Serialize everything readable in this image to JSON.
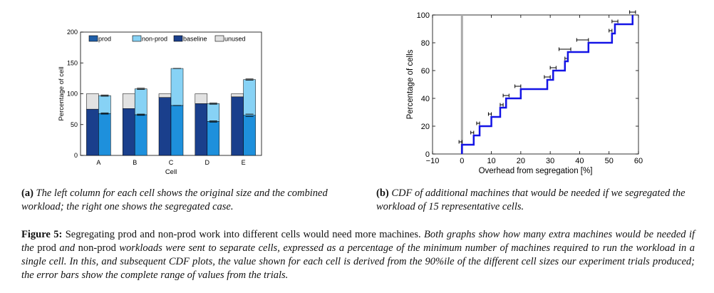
{
  "colors": {
    "prod": "#1f5fa8",
    "prod_right": "#1e90dc",
    "nonprod": "#87d2f5",
    "baseline": "#1a3f8c",
    "unused": "#e2e2e2",
    "cdf": "#1414e6",
    "zero_line": "#aaaaaa"
  },
  "chart_data": [
    {
      "type": "bar",
      "ylabel": "Percentage of cell",
      "xlabel": "Cell",
      "ylim": [
        0,
        200
      ],
      "yticks": [
        "0",
        "50",
        "100",
        "150",
        "200"
      ],
      "categories": [
        "A",
        "B",
        "C",
        "D",
        "E"
      ],
      "legend": {
        "placement": "top",
        "entries": [
          "prod",
          "non-prod",
          "baseline",
          "unused"
        ]
      },
      "left_columns": {
        "baseline": [
          75,
          76,
          94,
          84,
          95
        ],
        "unused": [
          25,
          24,
          6,
          16,
          5
        ]
      },
      "right_columns": {
        "prod": [
          68,
          66,
          81,
          55,
          65
        ],
        "non_prod": [
          29,
          42,
          60,
          29,
          58
        ],
        "prod_error": [
          1,
          1,
          0,
          1,
          2
        ],
        "total_error": [
          1,
          1,
          0,
          1,
          1
        ]
      }
    },
    {
      "type": "line",
      "ylabel": "Percentage of cells",
      "xlabel": "Overhead from segregation [%]",
      "xlim": [
        -10,
        60
      ],
      "ylim": [
        0,
        100
      ],
      "xticks": [
        "−10",
        "0",
        "10",
        "20",
        "30",
        "40",
        "50",
        "60"
      ],
      "yticks": [
        "0",
        "20",
        "40",
        "60",
        "80",
        "100"
      ],
      "vline_x": 0,
      "steps": [
        {
          "x": 0,
          "y": 6.67
        },
        {
          "x": 4,
          "y": 13.33
        },
        {
          "x": 6,
          "y": 20
        },
        {
          "x": 10,
          "y": 26.67
        },
        {
          "x": 13,
          "y": 33.33
        },
        {
          "x": 15,
          "y": 40
        },
        {
          "x": 20,
          "y": 46.67
        },
        {
          "x": 29,
          "y": 53.33
        },
        {
          "x": 31,
          "y": 60
        },
        {
          "x": 35,
          "y": 66.67
        },
        {
          "x": 36,
          "y": 73.33
        },
        {
          "x": 43,
          "y": 80
        },
        {
          "x": 51,
          "y": 86.67
        },
        {
          "x": 52,
          "y": 93.33
        },
        {
          "x": 58,
          "y": 100
        }
      ],
      "error_bars": [
        {
          "y": 6.67,
          "lo": -1,
          "hi": 0
        },
        {
          "y": 13.33,
          "lo": 3,
          "hi": 4
        },
        {
          "y": 20,
          "lo": 5,
          "hi": 6
        },
        {
          "y": 26.67,
          "lo": 9,
          "hi": 10
        },
        {
          "y": 33.33,
          "lo": 13,
          "hi": 14
        },
        {
          "y": 40,
          "lo": 14,
          "hi": 16
        },
        {
          "y": 46.67,
          "lo": 18,
          "hi": 20
        },
        {
          "y": 53.33,
          "lo": 28,
          "hi": 30
        },
        {
          "y": 60,
          "lo": 30,
          "hi": 32
        },
        {
          "y": 66.67,
          "lo": 35,
          "hi": 36
        },
        {
          "y": 73.33,
          "lo": 33,
          "hi": 37
        },
        {
          "y": 80,
          "lo": 39,
          "hi": 43
        },
        {
          "y": 86.67,
          "lo": 50,
          "hi": 51
        },
        {
          "y": 93.33,
          "lo": 51,
          "hi": 53
        },
        {
          "y": 100,
          "lo": 57,
          "hi": 59
        }
      ]
    }
  ],
  "captions": {
    "a_label": "(a)",
    "a_text": "The left column for each cell shows the original size and the combined workload; the right one shows the segregated case.",
    "b_label": "(b)",
    "b_text": "CDF of additional machines that would be needed if we segregated the workload of 15 representative cells.",
    "figure_label": "Figure 5:",
    "figure_text_1": "Segregating prod and non-prod work into different cells would need more machines.",
    "figure_text_2": "Both graphs show how many extra machines would be needed if the",
    "figure_prod": "prod",
    "figure_text_3": "and",
    "figure_nonprod": "non-prod",
    "figure_text_4": "workloads were sent to separate cells, expressed as a percentage of the minimum number of machines required to run the workload in a single cell. In this, and subsequent CDF plots, the value shown for each cell is derived from the 90%ile of the different cell sizes our experiment trials produced; the error bars show the complete range of values from the trials."
  }
}
